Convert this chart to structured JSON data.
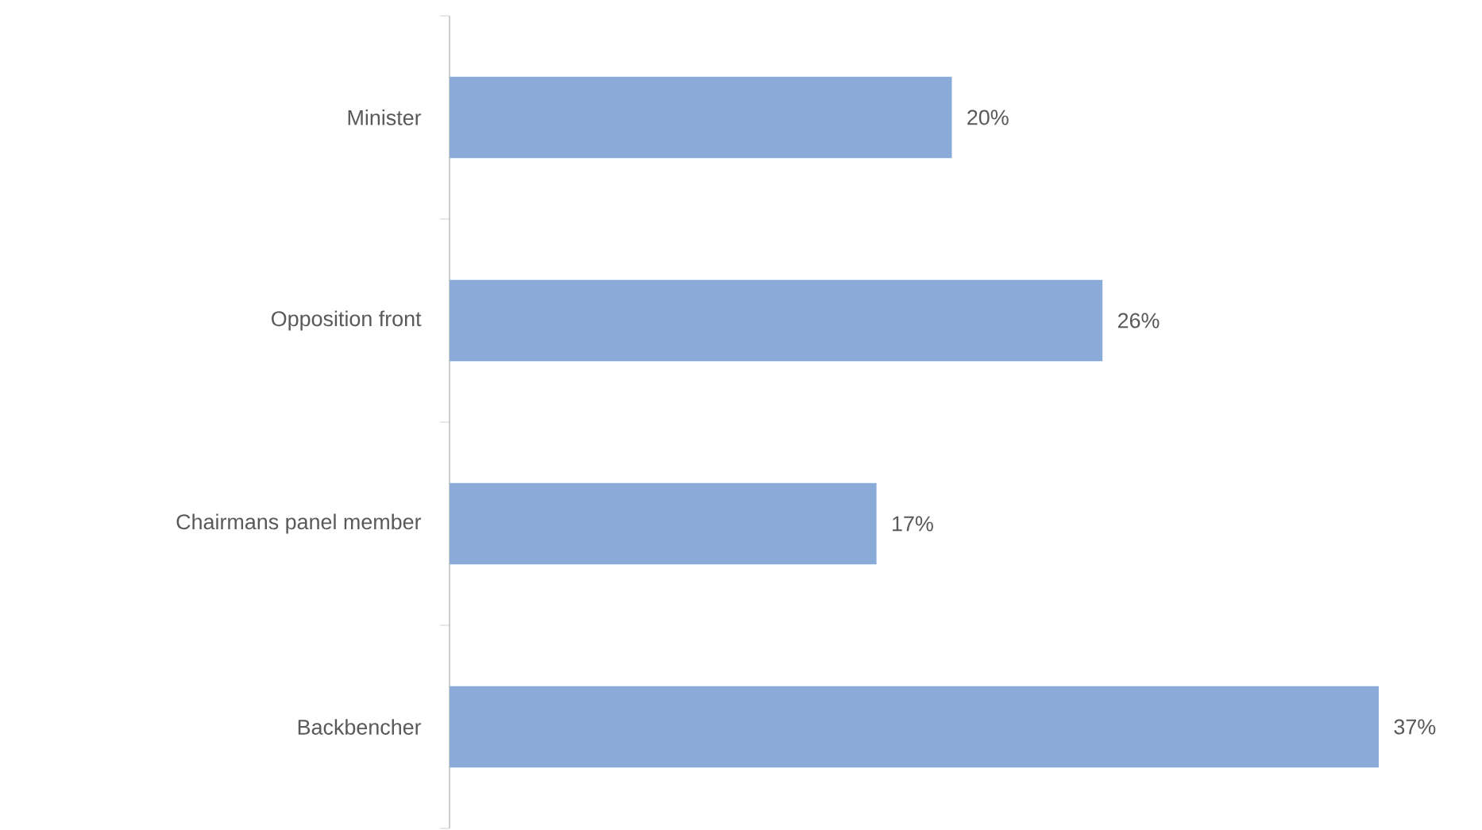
{
  "chart_data": {
    "type": "bar",
    "orientation": "horizontal",
    "categories": [
      "Minister",
      "Opposition front",
      "Chairmans panel member",
      "Backbencher"
    ],
    "values": [
      20,
      26,
      17,
      37
    ],
    "value_labels": [
      "20%",
      "26%",
      "17%",
      "37%"
    ],
    "color": "#8aabd7"
  }
}
